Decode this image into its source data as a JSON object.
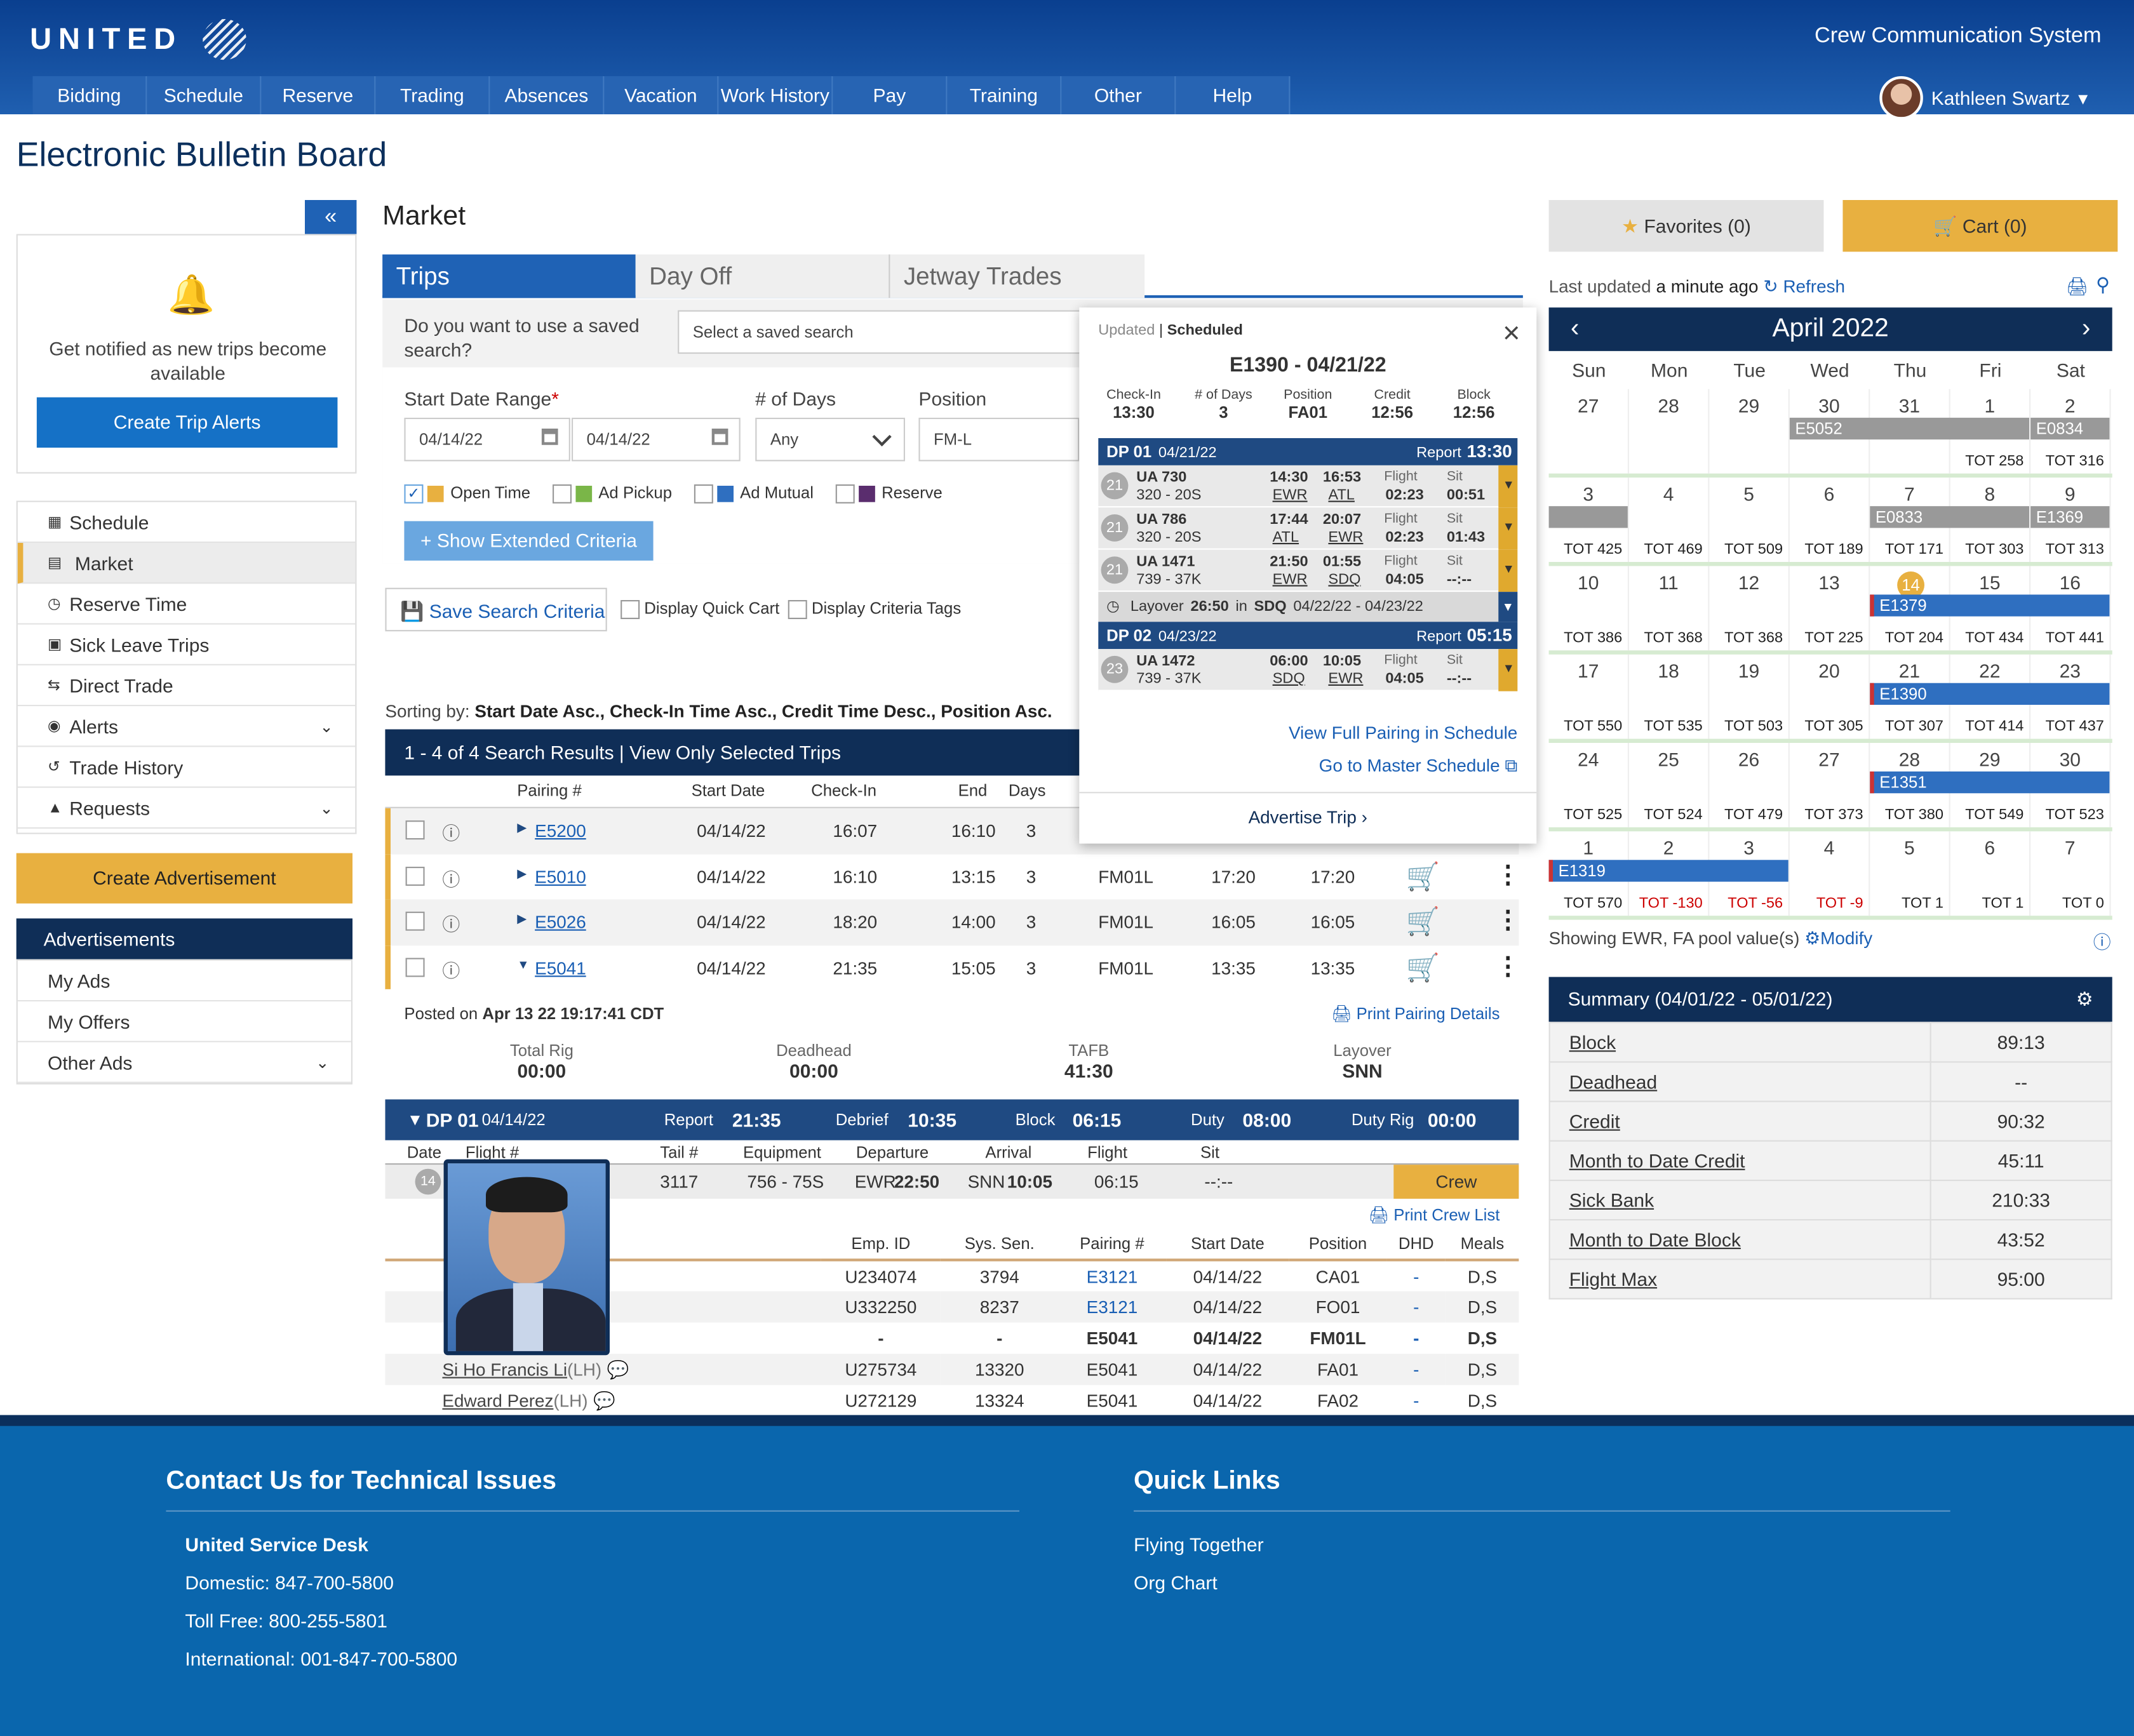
{
  "header": {
    "brand": "UNITED",
    "system_title": "Crew Communication System",
    "user_name": "Kathleen Swartz",
    "nav": [
      "Bidding",
      "Schedule",
      "Reserve",
      "Trading",
      "Absences",
      "Vacation",
      "Work History",
      "Pay",
      "Training",
      "Other",
      "Help"
    ]
  },
  "page_title": "Electronic Bulletin Board",
  "sidebar": {
    "notify_text": "Get notified as new trips become available",
    "create_alerts": "Create Trip Alerts",
    "items": [
      "Schedule",
      "Market",
      "Reserve Time",
      "Sick Leave Trips",
      "Direct Trade",
      "Alerts",
      "Trade History",
      "Requests"
    ],
    "create_ad": "Create Advertisement",
    "ads_header": "Advertisements",
    "ads": [
      "My Ads",
      "My Offers",
      "Other Ads"
    ]
  },
  "market": {
    "title": "Market",
    "tabs": [
      "Trips",
      "Day Off",
      "Jetway Trades"
    ],
    "saved_q": "Do you want to use a saved search?",
    "saved_ph": "Select a saved search",
    "date_label": "Start Date Range",
    "req": "*",
    "date_from": "04/14/22",
    "date_to": "04/14/22",
    "days_label": "# of Days",
    "days_val": "Any",
    "pos_label": "Position",
    "pos_val": "FM-L",
    "filters": [
      "Open Time",
      "Ad Pickup",
      "Ad Mutual",
      "Reserve"
    ],
    "filter_colors": [
      "#e8b040",
      "#7ab648",
      "#2f6fc0",
      "#5a2d6e"
    ],
    "show_ext": "+ Show Extended Criteria",
    "save_search": "Save Search Criteria",
    "quick_cart": "Display Quick Cart",
    "crit_tags": "Display Criteria Tags",
    "sorting_pre": "Sorting by:",
    "sorting": "Start Date Asc., Check-In Time Asc., Credit Time Desc., Position Asc.",
    "results": "1 - 4 of 4 Search Results",
    "view_sel": "View Only Selected Trips",
    "cols": [
      "Pairing #",
      "Start Date",
      "Check-In",
      "End",
      "Days"
    ],
    "rows": [
      [
        "E5200",
        "04/14/22",
        "16:07",
        "16:10",
        "3",
        "",
        "",
        ""
      ],
      [
        "E5010",
        "04/14/22",
        "16:10",
        "13:15",
        "3",
        "FM01L",
        "17:20",
        "17:20"
      ],
      [
        "E5026",
        "04/14/22",
        "18:20",
        "14:00",
        "3",
        "FM01L",
        "16:05",
        "16:05"
      ],
      [
        "E5041",
        "04/14/22",
        "21:35",
        "15:05",
        "3",
        "FM01L",
        "13:35",
        "13:35"
      ]
    ]
  },
  "detail": {
    "posted_pre": "Posted on",
    "posted": "Apr 13 22 19:17:41 CDT",
    "print": "Print Pairing Details",
    "stats": [
      [
        "Total Rig",
        "00:00"
      ],
      [
        "Deadhead",
        "00:00"
      ],
      [
        "TAFB",
        "41:30"
      ],
      [
        "Layover",
        "SNN"
      ]
    ],
    "dp": "DP 01",
    "dp_date": "04/14/22",
    "report": "Report",
    "report_v": "21:35",
    "debrief": "Debrief",
    "debrief_v": "10:35",
    "block": "Block",
    "block_v": "06:15",
    "duty": "Duty",
    "duty_v": "08:00",
    "rig": "Duty Rig",
    "rig_v": "00:00",
    "fcols": [
      "Date",
      "Flight #",
      "Tail #",
      "Equipment",
      "Departure",
      "Arrival",
      "Flight",
      "Sit"
    ],
    "frow": [
      "14",
      "3117",
      "756 - 75S",
      "EWR",
      "22:50",
      "SNN",
      "10:05",
      "06:15",
      "--:--"
    ],
    "crew_btn": "Crew",
    "print_crew": "Print Crew List",
    "ccols": [
      "Emp. ID",
      "Sys. Sen.",
      "Pairing #",
      "Start Date",
      "Position",
      "DHD",
      "Meals"
    ],
    "crew": [
      [
        "",
        "U234074",
        "3794",
        "E3121",
        "04/14/22",
        "CA01",
        "-",
        "D,S"
      ],
      [
        "",
        "U332250",
        "8237",
        "E3121",
        "04/14/22",
        "FO01",
        "-",
        "D,S"
      ],
      [
        "",
        "-",
        "-",
        "E5041",
        "04/14/22",
        "FM01L",
        "-",
        "D,S"
      ],
      [
        "Si Ho Francis Li",
        "U275734",
        "13320",
        "E5041",
        "04/14/22",
        "FA01",
        "-",
        "D,S"
      ],
      [
        "Edward Perez",
        "U272129",
        "13324",
        "E5041",
        "04/14/22",
        "FA02",
        "-",
        "D,S"
      ]
    ],
    "lh": "(LH)"
  },
  "popup": {
    "updated": "Updated",
    "scheduled": "Scheduled",
    "title": "E1390 - 04/21/22",
    "stats": [
      [
        "Check-In",
        "13:30"
      ],
      [
        "# of Days",
        "3"
      ],
      [
        "Position",
        "FA01"
      ],
      [
        "Credit",
        "12:56"
      ],
      [
        "Block",
        "12:56"
      ]
    ],
    "dp1": "DP 01",
    "dp1_date": "04/21/22",
    "dp1_report": "13:30",
    "dp2": "DP 02",
    "dp2_date": "04/23/22",
    "dp2_report": "05:15",
    "report": "Report",
    "legs": [
      [
        "21",
        "UA 730",
        "320 - 20S",
        "14:30",
        "16:53",
        "EWR",
        "ATL",
        "02:23",
        "00:51"
      ],
      [
        "21",
        "UA 786",
        "320 - 20S",
        "17:44",
        "20:07",
        "ATL",
        "EWR",
        "02:23",
        "01:43"
      ],
      [
        "21",
        "UA 1471",
        "739 - 37K",
        "21:50",
        "01:55",
        "EWR",
        "SDQ",
        "04:05",
        "--:--"
      ]
    ],
    "leg2": [
      "23",
      "UA 1472",
      "739 - 37K",
      "06:00",
      "10:05",
      "SDQ",
      "EWR",
      "04:05",
      "--:--"
    ],
    "lay": "Layover",
    "lay_t": "26:50",
    "lay_in": "in",
    "lay_st": "SDQ",
    "lay_d": "04/22/22 - 04/23/22",
    "flight": "Flight",
    "sit": "Sit",
    "view_full": "View Full Pairing in Schedule",
    "master": "Go to Master Schedule",
    "advertise": "Advertise Trip"
  },
  "right": {
    "fav": "Favorites (0)",
    "cart": "Cart (0)",
    "updated_pre": "Last updated",
    "updated": "a minute ago",
    "refresh": "Refresh",
    "month": "April 2022",
    "dow": [
      "Sun",
      "Mon",
      "Tue",
      "Wed",
      "Thu",
      "Fri",
      "Sat"
    ],
    "weeks": [
      [
        [
          "27",
          ""
        ],
        [
          "28",
          ""
        ],
        [
          "29",
          ""
        ],
        [
          "30",
          ""
        ],
        [
          "31",
          ""
        ],
        [
          "1",
          "TOT 258"
        ],
        [
          "2",
          "TOT 316"
        ]
      ],
      [
        [
          "3",
          "TOT 425"
        ],
        [
          "4",
          "TOT 469"
        ],
        [
          "5",
          "TOT 509"
        ],
        [
          "6",
          "TOT 189"
        ],
        [
          "7",
          "TOT 171"
        ],
        [
          "8",
          "TOT 303"
        ],
        [
          "9",
          "TOT 313"
        ]
      ],
      [
        [
          "10",
          "TOT 386"
        ],
        [
          "11",
          "TOT 368"
        ],
        [
          "12",
          "TOT 368"
        ],
        [
          "13",
          "TOT 225"
        ],
        [
          "14",
          "TOT 204"
        ],
        [
          "15",
          "TOT 434"
        ],
        [
          "16",
          "TOT 441"
        ]
      ],
      [
        [
          "17",
          "TOT 550"
        ],
        [
          "18",
          "TOT 535"
        ],
        [
          "19",
          "TOT 503"
        ],
        [
          "20",
          "TOT 305"
        ],
        [
          "21",
          "TOT 307"
        ],
        [
          "22",
          "TOT 414"
        ],
        [
          "23",
          "TOT 437"
        ]
      ],
      [
        [
          "24",
          "TOT 525"
        ],
        [
          "25",
          "TOT 524"
        ],
        [
          "26",
          "TOT 479"
        ],
        [
          "27",
          "TOT 373"
        ],
        [
          "28",
          "TOT 380"
        ],
        [
          "29",
          "TOT 549"
        ],
        [
          "30",
          "TOT 523"
        ]
      ],
      [
        [
          "1",
          "TOT 570"
        ],
        [
          "2",
          "TOT -130"
        ],
        [
          "3",
          "TOT -56"
        ],
        [
          "4",
          "TOT -9"
        ],
        [
          "5",
          "TOT 1"
        ],
        [
          "6",
          "TOT 1"
        ],
        [
          "7",
          "TOT 0"
        ]
      ]
    ],
    "bars": [
      "E5052",
      "E0834",
      "E0833",
      "E1369",
      "E1379",
      "E1390",
      "E1351",
      "E1319"
    ],
    "pool": "Showing EWR, FA pool value(s)",
    "modify": "Modify",
    "summary_title": "Summary (04/01/22 - 05/01/22)",
    "summary": [
      [
        "Block",
        "89:13"
      ],
      [
        "Deadhead",
        "--"
      ],
      [
        "Credit",
        "90:32"
      ],
      [
        "Month to Date Credit",
        "45:11"
      ],
      [
        "Sick Bank",
        "210:33"
      ],
      [
        "Month to Date Block",
        "43:52"
      ],
      [
        "Flight Max",
        "95:00"
      ]
    ]
  },
  "footer": {
    "contact": "Contact Us for Technical Issues",
    "desk": "United Service Desk",
    "lines": [
      "Domestic: 847-700-5800",
      "Toll Free: 800-255-5801",
      "International: 001-847-700-5800"
    ],
    "quick": "Quick Links",
    "links": [
      "Flying Together",
      "Org Chart"
    ]
  },
  "colors": {
    "navy": "#0f2e57",
    "blue": "#1571c6",
    "gold": "#e8b040"
  }
}
